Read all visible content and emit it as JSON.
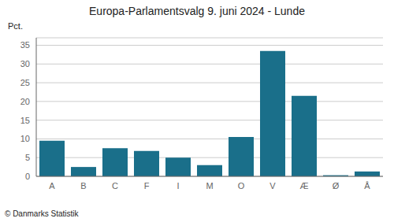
{
  "chart_data": {
    "type": "bar",
    "title": "Europa-Parlamentsvalg 9. juni 2024 - Lunde",
    "ylabel": "Pct.",
    "annotations": [
      "© Danmarks Statistik"
    ],
    "categories": [
      "A",
      "B",
      "C",
      "F",
      "I",
      "M",
      "O",
      "V",
      "Æ",
      "Ø",
      "Å"
    ],
    "values": [
      9.5,
      2.5,
      7.5,
      6.8,
      5.0,
      3.0,
      10.5,
      33.5,
      21.5,
      0.3,
      1.3
    ],
    "color": "#1a6f8a",
    "ylim": [
      0,
      37
    ],
    "yticks": [
      0,
      5,
      10,
      15,
      20,
      25,
      30,
      35
    ],
    "grid": true
  }
}
